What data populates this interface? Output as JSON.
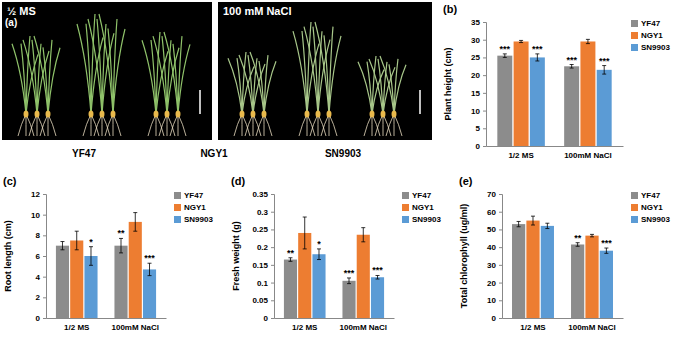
{
  "image_panel": {
    "title": "(a)",
    "image_titles": [
      "½ MS",
      "100 mM NaCl"
    ],
    "genotypes": [
      "YF47",
      "NGY1",
      "SN9903"
    ]
  },
  "chart_data": [
    {
      "type": "bar",
      "title": "(b)",
      "y_label": "Plant height (cm)",
      "categories": [
        "1/2 MS",
        "100mM NaCl"
      ],
      "series": [
        {
          "name": "YF47",
          "color": "#8c8c8c",
          "values": [
            25.5,
            22.5
          ],
          "errors": [
            0.5,
            0.5
          ],
          "annotations": [
            "***",
            "***"
          ]
        },
        {
          "name": "NGY1",
          "color": "#ed7d31",
          "values": [
            29.5,
            29.5
          ],
          "errors": [
            0.3,
            0.6
          ],
          "annotations": [
            null,
            null
          ]
        },
        {
          "name": "SN9903",
          "color": "#5b9bd5",
          "values": [
            25,
            21.5
          ],
          "errors": [
            1,
            1.2
          ],
          "annotations": [
            "***",
            "***"
          ]
        }
      ],
      "ylim": [
        0,
        35
      ],
      "yticks": [
        0,
        5,
        10,
        15,
        20,
        25,
        30,
        35
      ],
      "legend": "upper-right"
    },
    {
      "type": "bar",
      "title": "(c)",
      "y_label": "Root length (cm)",
      "categories": [
        "1/2 MS",
        "100mM NaCl"
      ],
      "series": [
        {
          "name": "YF47",
          "color": "#8c8c8c",
          "values": [
            7,
            7
          ],
          "errors": [
            0.4,
            0.7
          ],
          "annotations": [
            null,
            "**"
          ]
        },
        {
          "name": "NGY1",
          "color": "#ed7d31",
          "values": [
            7.5,
            9.3
          ],
          "errors": [
            0.9,
            0.9
          ],
          "annotations": [
            null,
            null
          ]
        },
        {
          "name": "SN9903",
          "color": "#5b9bd5",
          "values": [
            6,
            4.7
          ],
          "errors": [
            0.9,
            0.6
          ],
          "annotations": [
            "*",
            "***"
          ]
        }
      ],
      "ylim": [
        0,
        12
      ],
      "yticks": [
        0,
        2,
        4,
        6,
        8,
        10,
        12
      ],
      "legend": "upper-right"
    },
    {
      "type": "bar",
      "title": "(d)",
      "y_label": "Fresh weight (g)",
      "categories": [
        "1/2 MS",
        "100mM NaCl"
      ],
      "series": [
        {
          "name": "YF47",
          "color": "#8c8c8c",
          "values": [
            0.165,
            0.105
          ],
          "errors": [
            0.005,
            0.008
          ],
          "annotations": [
            "**",
            "***"
          ]
        },
        {
          "name": "NGY1",
          "color": "#ed7d31",
          "values": [
            0.24,
            0.235
          ],
          "errors": [
            0.045,
            0.02
          ],
          "annotations": [
            null,
            null
          ]
        },
        {
          "name": "SN9903",
          "color": "#5b9bd5",
          "values": [
            0.18,
            0.115
          ],
          "errors": [
            0.015,
            0.005
          ],
          "annotations": [
            "*",
            "***"
          ]
        }
      ],
      "ylim": [
        0,
        0.35
      ],
      "yticks": [
        0,
        0.05,
        0.1,
        0.15,
        0.2,
        0.25,
        0.3,
        0.35
      ],
      "legend": "upper-right"
    },
    {
      "type": "bar",
      "title": "(e)",
      "y_label": "Total chlorophyll (ug/ml)",
      "categories": [
        "1/2 MS",
        "100mM NaCl"
      ],
      "series": [
        {
          "name": "YF47",
          "color": "#8c8c8c",
          "values": [
            53,
            41.5
          ],
          "errors": [
            1.5,
            1
          ],
          "annotations": [
            null,
            "**"
          ]
        },
        {
          "name": "NGY1",
          "color": "#ed7d31",
          "values": [
            55,
            46.5
          ],
          "errors": [
            2.5,
            0.7
          ],
          "annotations": [
            null,
            null
          ]
        },
        {
          "name": "SN9903",
          "color": "#5b9bd5",
          "values": [
            52,
            38
          ],
          "errors": [
            1.5,
            1.5
          ],
          "annotations": [
            null,
            "***"
          ]
        }
      ],
      "ylim": [
        0,
        70
      ],
      "yticks": [
        0,
        10,
        20,
        30,
        40,
        50,
        60,
        70
      ],
      "legend": "upper-right"
    }
  ]
}
